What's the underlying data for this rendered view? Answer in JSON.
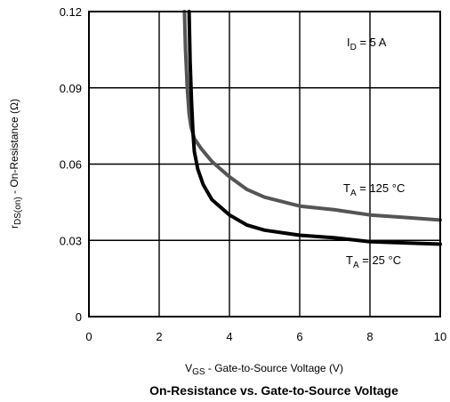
{
  "chart_data": {
    "type": "line",
    "title": "On-Resistance vs. Gate-to-Source Voltage",
    "xlabel": {
      "main": "V",
      "sub": "GS",
      "rest": " - Gate-to-Source Voltage (V)"
    },
    "ylabel": {
      "main": "r",
      "sub": "DS(on)",
      "rest": " - On-Resistance (Ω)"
    },
    "xlim": [
      0,
      10
    ],
    "ylim": [
      0,
      0.12
    ],
    "xticks": [
      "0",
      "2",
      "4",
      "6",
      "8",
      "10"
    ],
    "yticks": [
      "0",
      "0.03",
      "0.06",
      "0.09",
      "0.12"
    ],
    "grid": true,
    "annotations": {
      "id": {
        "main": "I",
        "sub": "D",
        "rest": " = 5 A"
      },
      "t125": {
        "main": "T",
        "sub": "A",
        "rest": " = 125 °C"
      },
      "t25": {
        "main": "T",
        "sub": "A",
        "rest": " = 25 °C"
      }
    },
    "series": [
      {
        "name": "T_A = 125 °C",
        "color": "#555555",
        "x": [
          2.72,
          2.75,
          2.8,
          2.85,
          2.9,
          3.0,
          3.2,
          3.5,
          4.0,
          4.5,
          5.0,
          6.0,
          7.0,
          8.0,
          9.0,
          10.0
        ],
        "y": [
          0.12,
          0.105,
          0.09,
          0.08,
          0.075,
          0.07,
          0.066,
          0.061,
          0.055,
          0.05,
          0.047,
          0.0435,
          0.042,
          0.04,
          0.039,
          0.038
        ]
      },
      {
        "name": "T_A = 25 °C",
        "color": "#000000",
        "x": [
          2.85,
          2.88,
          2.92,
          2.96,
          3.0,
          3.1,
          3.25,
          3.5,
          4.0,
          4.5,
          5.0,
          6.0,
          7.0,
          8.0,
          9.0,
          10.0
        ],
        "y": [
          0.12,
          0.1,
          0.085,
          0.073,
          0.065,
          0.058,
          0.052,
          0.046,
          0.04,
          0.036,
          0.034,
          0.032,
          0.031,
          0.0295,
          0.029,
          0.0285
        ]
      }
    ]
  }
}
